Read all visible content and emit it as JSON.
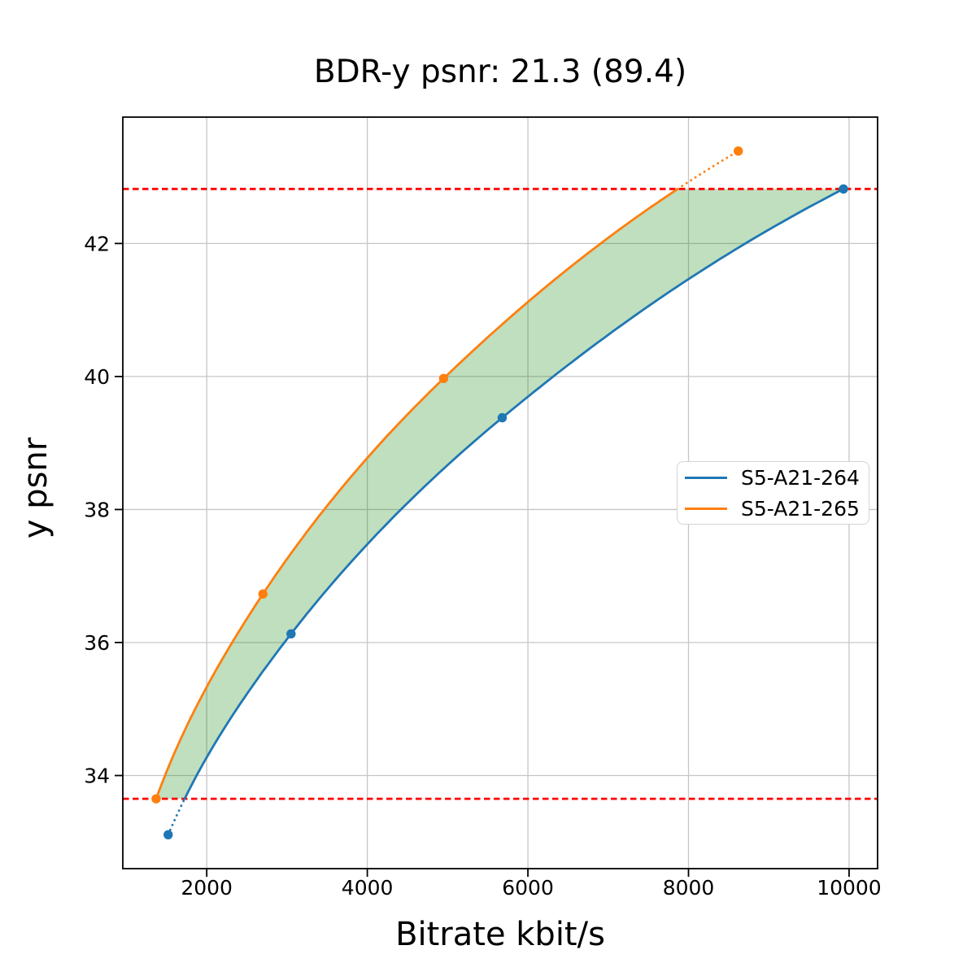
{
  "title": "BDR-y psnr: 21.3 (89.4)",
  "chart_data": {
    "type": "line",
    "title": "BDR-y psnr: 21.3 (89.4)",
    "xlabel": "Bitrate kbit/s",
    "ylabel": "y psnr",
    "xlim": [
      955,
      10355
    ],
    "ylim": [
      32.6,
      43.9
    ],
    "xticks": [
      2000,
      4000,
      6000,
      8000,
      10000
    ],
    "yticks": [
      34,
      36,
      38,
      40,
      42
    ],
    "grid": true,
    "grid_color": "#c6c6c6",
    "frame_color": "#000000",
    "legend": {
      "position": "center right",
      "entries": [
        "S5-A21-264",
        "S5-A21-265"
      ]
    },
    "series": [
      {
        "name": "S5-A21-264",
        "color": "#1f77b4",
        "marker": "circle",
        "x": [
          1520,
          3050,
          5680,
          9930
        ],
        "y": [
          33.11,
          36.13,
          39.38,
          42.82
        ]
      },
      {
        "name": "S5-A21-265",
        "color": "#ff7f0e",
        "marker": "circle",
        "x": [
          1370,
          2700,
          4950,
          8620
        ],
        "y": [
          33.65,
          36.73,
          39.97,
          43.39
        ]
      }
    ],
    "overlap_band": {
      "lower": 33.65,
      "upper": 42.82,
      "line_color": "#ff0000",
      "line_style": "dashed"
    },
    "fill_between": {
      "series": [
        "S5-A21-265",
        "S5-A21-264"
      ],
      "color": "#008000",
      "opacity": 0.25
    }
  }
}
